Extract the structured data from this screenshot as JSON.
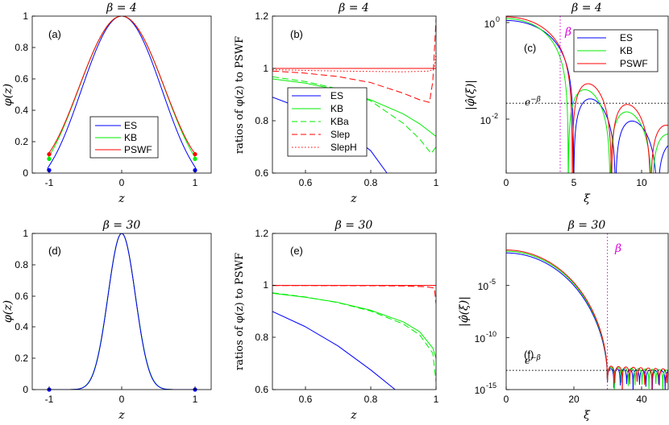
{
  "figure": {
    "legend_set1": [
      "ES",
      "KB",
      "PSWF"
    ],
    "legend_set2": [
      "ES",
      "KB",
      "KBa",
      "Slep",
      "SlepH"
    ]
  },
  "panels": [
    {
      "id": "a",
      "tag": "(a)",
      "title": "β = 4",
      "xlabel": "z",
      "ylabel": "φ(z)",
      "xticks": [
        "-1",
        "0",
        "1"
      ],
      "yticks": [
        "0",
        "0.2",
        "0.4",
        "0.6",
        "0.8",
        "1"
      ]
    },
    {
      "id": "b",
      "tag": "(b)",
      "title": "β = 4",
      "xlabel": "z",
      "ylabel": "ratios of φ(z) to PSWF",
      "xticks": [
        "0.6",
        "0.8",
        "1"
      ],
      "yticks": [
        "0.6",
        "0.8",
        "1",
        "1.2"
      ]
    },
    {
      "id": "c",
      "tag": "(c)",
      "title": "β = 4",
      "xlabel": "ξ",
      "ylabel": "|φ̂(ξ)|",
      "xticks": [
        "0",
        "5",
        "10"
      ],
      "ytick_base": [
        "10",
        "10"
      ],
      "ytick_exp": [
        "0",
        "-2"
      ],
      "beta_label": "β",
      "ebeta_label": "e",
      "ebeta_exp": "−β"
    },
    {
      "id": "d",
      "tag": "(d)",
      "title": "β = 30",
      "xlabel": "z",
      "ylabel": "φ(z)",
      "xticks": [
        "-1",
        "0",
        "1"
      ],
      "yticks": [
        "0",
        "0.2",
        "0.4",
        "0.6",
        "0.8",
        "1"
      ]
    },
    {
      "id": "e",
      "tag": "(e)",
      "title": "β = 30",
      "xlabel": "z",
      "ylabel": "ratios of φ(z) to PSWF",
      "xticks": [
        "0.6",
        "0.8",
        "1"
      ],
      "yticks": [
        "0.6",
        "0.8",
        "1",
        "1.2"
      ]
    },
    {
      "id": "f",
      "tag": "(f)",
      "title": "β = 30",
      "xlabel": "ξ",
      "ylabel": "|φ̂(ξ)|",
      "xticks": [
        "0",
        "20",
        "40"
      ],
      "ytick_base": [
        "10",
        "10",
        "10"
      ],
      "ytick_exp": [
        "-5",
        "-10",
        "-15"
      ],
      "beta_label": "β",
      "ebeta_label": "e",
      "ebeta_exp": "−β"
    }
  ],
  "chart_data": [
    {
      "panel": "a",
      "type": "line",
      "title": "β = 4",
      "xlabel": "z",
      "ylabel": "φ(z)",
      "xlim": [
        -1.2,
        1.2
      ],
      "ylim": [
        0,
        1
      ],
      "beta": 4,
      "series": [
        {
          "name": "ES",
          "color": "#0000ff",
          "endpoint_value": 0.018
        },
        {
          "name": "KB",
          "color": "#00ee00",
          "endpoint_value": 0.09
        },
        {
          "name": "PSWF",
          "color": "#ff0000",
          "endpoint_value": 0.12
        }
      ],
      "legend": "lower-center"
    },
    {
      "panel": "b",
      "type": "line",
      "title": "β = 4",
      "xlabel": "z",
      "ylabel": "ratios of φ(z) to PSWF",
      "xlim": [
        0.5,
        1
      ],
      "ylim": [
        0.6,
        1.2
      ],
      "series": [
        {
          "name": "ES",
          "color": "#0000ff",
          "style": "solid",
          "x": [
            0.5,
            0.6,
            0.7,
            0.8,
            0.85
          ],
          "y": [
            0.89,
            0.843,
            0.78,
            0.686,
            0.6
          ]
        },
        {
          "name": "KB",
          "color": "#00ee00",
          "style": "solid",
          "x": [
            0.5,
            0.6,
            0.7,
            0.8,
            0.9,
            0.95,
            1.0
          ],
          "y": [
            0.96,
            0.944,
            0.918,
            0.88,
            0.826,
            0.788,
            0.74
          ]
        },
        {
          "name": "KBa",
          "color": "#00ee00",
          "style": "dashed",
          "x": [
            0.5,
            0.6,
            0.7,
            0.8,
            0.9,
            0.95,
            0.985,
            1.0
          ],
          "y": [
            0.968,
            0.95,
            0.922,
            0.876,
            0.79,
            0.73,
            0.675,
            0.7
          ]
        },
        {
          "name": "Slep",
          "color": "#ff0000",
          "style": "dashed",
          "x": [
            0.5,
            0.6,
            0.7,
            0.8,
            0.9,
            0.95,
            0.98,
            0.99,
            1.0
          ],
          "y": [
            0.99,
            0.982,
            0.969,
            0.946,
            0.905,
            0.88,
            0.87,
            0.95,
            1.19
          ]
        },
        {
          "name": "SlepH",
          "color": "#ff0000",
          "style": "dotted",
          "x": [
            0.5,
            0.7,
            0.9,
            0.98,
            0.995,
            1.0
          ],
          "y": [
            0.995,
            0.99,
            0.987,
            0.99,
            1.0,
            1.06
          ]
        },
        {
          "name": "PSWF reference",
          "color": "#ff0000",
          "style": "solid",
          "x": [
            0.5,
            1.0
          ],
          "y": [
            1.0,
            1.0
          ]
        }
      ],
      "legend": "lower-center"
    },
    {
      "panel": "c",
      "type": "line",
      "title": "β = 4",
      "xlabel": "ξ",
      "ylabel": "|φ̂(ξ)|",
      "yscale": "log",
      "xlim": [
        0,
        12
      ],
      "ylim": [
        0.0006,
        1.3
      ],
      "beta": 4,
      "ebeta": 0.0183,
      "series": [
        {
          "name": "ES",
          "color": "#0000ff",
          "first_zero": 5.0,
          "second_zero": 8.1
        },
        {
          "name": "KB",
          "color": "#00ee00",
          "first_zero": 4.6,
          "second_zero": 7.7
        },
        {
          "name": "PSWF",
          "color": "#ff0000",
          "first_zero": 4.9,
          "second_zero": 7.8
        }
      ],
      "legend": "top-right"
    },
    {
      "panel": "d",
      "type": "line",
      "title": "β = 30",
      "xlabel": "z",
      "ylabel": "φ(z)",
      "xlim": [
        -1.2,
        1.2
      ],
      "ylim": [
        0,
        1
      ],
      "beta": 30,
      "series": [
        {
          "name": "ES",
          "color": "#0000ff"
        },
        {
          "name": "KB",
          "color": "#00ee00"
        },
        {
          "name": "PSWF",
          "color": "#ff0000"
        }
      ]
    },
    {
      "panel": "e",
      "type": "line",
      "title": "β = 30",
      "xlabel": "z",
      "ylabel": "ratios of φ(z) to PSWF",
      "xlim": [
        0.5,
        1
      ],
      "ylim": [
        0.6,
        1.2
      ],
      "series": [
        {
          "name": "ES",
          "color": "#0000ff",
          "style": "solid",
          "x": [
            0.5,
            0.6,
            0.7,
            0.8,
            0.875
          ],
          "y": [
            0.9,
            0.842,
            0.768,
            0.676,
            0.6
          ]
        },
        {
          "name": "KB",
          "color": "#00ee00",
          "style": "solid",
          "x": [
            0.5,
            0.6,
            0.7,
            0.8,
            0.9,
            0.95,
            0.99,
            1.0
          ],
          "y": [
            0.97,
            0.955,
            0.935,
            0.905,
            0.86,
            0.822,
            0.76,
            0.72
          ]
        },
        {
          "name": "KBa",
          "color": "#00ee00",
          "style": "dashed",
          "x": [
            0.5,
            0.6,
            0.7,
            0.8,
            0.9,
            0.95,
            0.99,
            1.0
          ],
          "y": [
            0.972,
            0.956,
            0.934,
            0.902,
            0.852,
            0.81,
            0.74,
            0.63
          ]
        },
        {
          "name": "Slep",
          "color": "#ff0000",
          "style": "dashed",
          "x": [
            0.5,
            0.8,
            0.9,
            0.97,
            0.995,
            1.0
          ],
          "y": [
            1.0,
            0.999,
            0.998,
            0.995,
            0.99,
            0.93
          ]
        },
        {
          "name": "SlepH",
          "color": "#ff0000",
          "style": "dotted",
          "x": [
            0.5,
            1.0
          ],
          "y": [
            1.0,
            1.0
          ]
        },
        {
          "name": "PSWF reference",
          "color": "#ff0000",
          "style": "solid",
          "x": [
            0.5,
            1.0
          ],
          "y": [
            1.0,
            1.0
          ]
        }
      ]
    },
    {
      "panel": "f",
      "type": "line",
      "title": "β = 30",
      "xlabel": "ξ",
      "ylabel": "|φ̂(ξ)|",
      "yscale": "log",
      "xlim": [
        0,
        48
      ],
      "ylim": [
        1e-15,
        10
      ],
      "beta": 30,
      "ebeta": 9.36e-14,
      "series": [
        {
          "name": "ES",
          "color": "#0000ff",
          "value_at_0": 0.1
        },
        {
          "name": "KB",
          "color": "#00ee00",
          "value_at_0": 0.15
        },
        {
          "name": "PSWF",
          "color": "#ff0000",
          "value_at_0": 0.2
        }
      ]
    }
  ]
}
